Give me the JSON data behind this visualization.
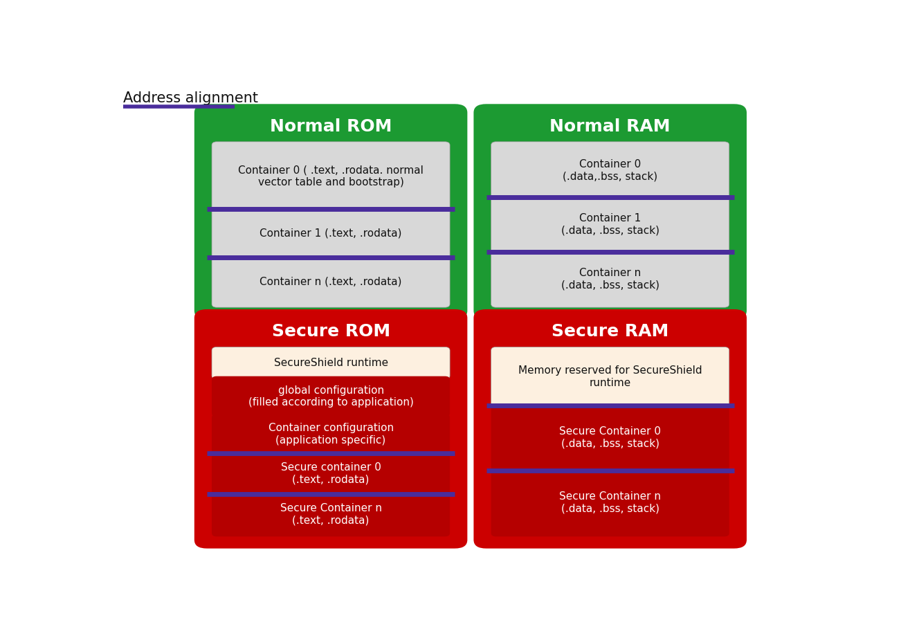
{
  "bg_color": "#ffffff",
  "green": "#1c9a32",
  "red": "#cc0000",
  "dark_red": "#b50000",
  "light_gray": "#d8d8d8",
  "cream": "#fdf0e0",
  "purple": "#4a2d9c",
  "white": "#ffffff",
  "black": "#111111",
  "title_text": "Address alignment",
  "title_color": "#111111",
  "title_underline_color": "#4a2d9c",
  "panels": [
    {
      "id": "NormalROM",
      "title": "Normal ROM",
      "bg": "#1c9a32",
      "title_color": "#ffffff",
      "items": [
        {
          "text": "Container 0 ( .text, .rodata. normal\nvector table and bootstrap)",
          "bg": "#d8d8d8",
          "fc": "#111111"
        },
        {
          "text": "Container 1 (.text, .rodata)",
          "bg": "#d8d8d8",
          "fc": "#111111"
        },
        {
          "text": "Container n (.text, .rodata)",
          "bg": "#d8d8d8",
          "fc": "#111111"
        }
      ],
      "purple_after": [
        0,
        1
      ]
    },
    {
      "id": "NormalRAM",
      "title": "Normal RAM",
      "bg": "#1c9a32",
      "title_color": "#ffffff",
      "items": [
        {
          "text": "Container 0\n(.data,.bss, stack)",
          "bg": "#d8d8d8",
          "fc": "#111111"
        },
        {
          "text": "Container 1\n(.data, .bss, stack)",
          "bg": "#d8d8d8",
          "fc": "#111111"
        },
        {
          "text": "Container n\n(.data, .bss, stack)",
          "bg": "#d8d8d8",
          "fc": "#111111"
        }
      ],
      "purple_after": [
        0,
        1
      ]
    },
    {
      "id": "SecureROM",
      "title": "Secure ROM",
      "bg": "#cc0000",
      "title_color": "#ffffff",
      "items": [
        {
          "text": "SecureShield runtime",
          "bg": "#fdf0e0",
          "fc": "#111111"
        },
        {
          "text": "global configuration\n(filled according to application)",
          "bg": "#b50000",
          "fc": "#ffffff"
        },
        {
          "text": "Container configuration\n(application specific)",
          "bg": "#b50000",
          "fc": "#ffffff"
        },
        {
          "text": "Secure container 0\n(.text, .rodata)",
          "bg": "#b50000",
          "fc": "#ffffff"
        },
        {
          "text": "Secure Container n\n(.text, .rodata)",
          "bg": "#b50000",
          "fc": "#ffffff"
        }
      ],
      "purple_after": [
        2,
        3
      ]
    },
    {
      "id": "SecureRAM",
      "title": "Secure RAM",
      "bg": "#cc0000",
      "title_color": "#ffffff",
      "items": [
        {
          "text": "Memory reserved for SecureShield\nruntime",
          "bg": "#fdf0e0",
          "fc": "#111111"
        },
        {
          "text": "Secure Container 0\n(.data, .bss, stack)",
          "bg": "#b50000",
          "fc": "#ffffff"
        },
        {
          "text": "Secure Container n\n(.data, .bss, stack)",
          "bg": "#b50000",
          "fc": "#ffffff"
        }
      ],
      "purple_after": [
        0,
        1
      ]
    }
  ]
}
